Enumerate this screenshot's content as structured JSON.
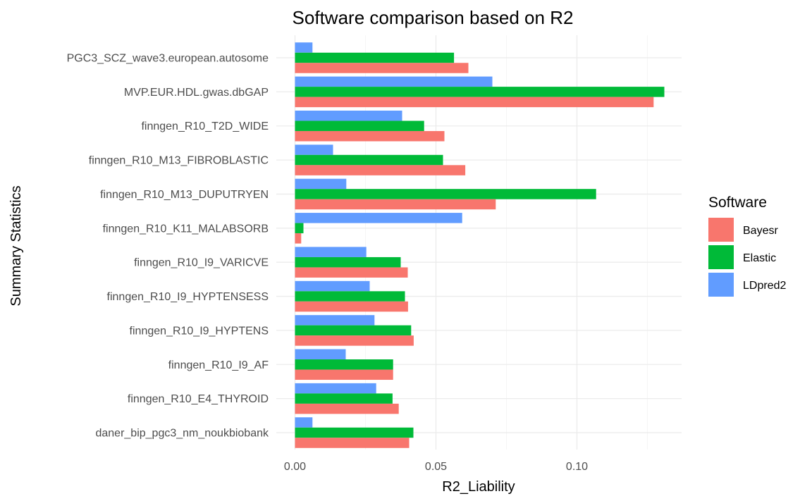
{
  "chart_data": {
    "type": "bar",
    "orientation": "horizontal",
    "title": "Software comparison based on R2",
    "xlabel": "R2_Liability",
    "ylabel": "Summary Statistics",
    "xlim": [
      0,
      0.1375
    ],
    "xticks": [
      0.0,
      0.05,
      0.1
    ],
    "xtick_labels": [
      "0.00",
      "0.05",
      "0.10"
    ],
    "grid": true,
    "legend": {
      "title": "Software",
      "placement": "right"
    },
    "categories": [
      "PGC3_SCZ_wave3.european.autosome",
      "MVP.EUR.HDL.gwas.dbGAP",
      "finngen_R10_T2D_WIDE",
      "finngen_R10_M13_FIBROBLASTIC",
      "finngen_R10_M13_DUPUTRYEN",
      "finngen_R10_K11_MALABSORB",
      "finngen_R10_I9_VARICVE",
      "finngen_R10_I9_HYPTENSESS",
      "finngen_R10_I9_HYPTENS",
      "finngen_R10_I9_AF",
      "finngen_R10_E4_THYROID",
      "daner_bip_pgc3_nm_noukbiobank"
    ],
    "series": [
      {
        "name": "Bayesr",
        "color": "#F8766D",
        "values": [
          0.0615,
          0.1272,
          0.053,
          0.0604,
          0.0712,
          0.0022,
          0.04,
          0.0401,
          0.0421,
          0.0348,
          0.0368,
          0.0405
        ]
      },
      {
        "name": "Elastic",
        "color": "#00BA38",
        "values": [
          0.0564,
          0.131,
          0.0458,
          0.0525,
          0.1068,
          0.003,
          0.0375,
          0.039,
          0.0412,
          0.0348,
          0.0346,
          0.042
        ]
      },
      {
        "name": "LDpred2",
        "color": "#619CFF",
        "values": [
          0.0062,
          0.07,
          0.038,
          0.0135,
          0.0182,
          0.0593,
          0.0253,
          0.0265,
          0.0282,
          0.018,
          0.0288,
          0.0062
        ]
      }
    ]
  }
}
